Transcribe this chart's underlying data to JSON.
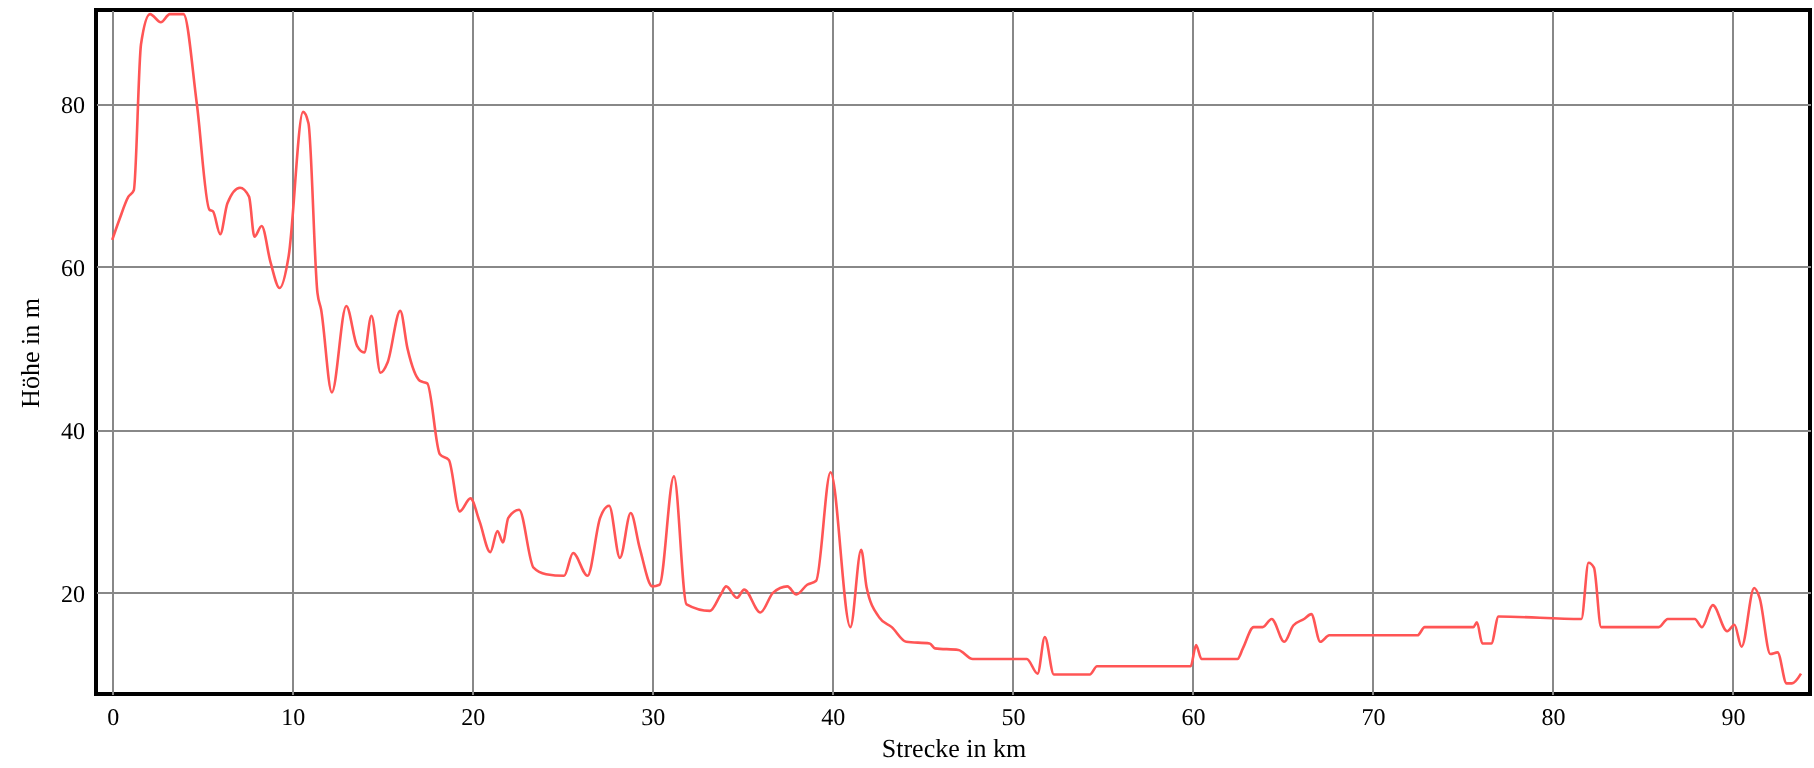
{
  "chart_data": {
    "type": "line",
    "xlabel": "Strecke in km",
    "ylabel": "Höhe in m",
    "x": [
      0,
      0.4,
      0.9,
      1.2,
      1.6,
      2.1,
      2.7,
      3.2,
      3.96,
      4.7,
      5.4,
      5.6,
      6.0,
      6.4,
      7.1,
      7.6,
      7.9,
      8.3,
      8.8,
      9.3,
      9.8,
      10.6,
      10.9,
      11.4,
      11.6,
      12.2,
      13.0,
      13.6,
      14.0,
      14.4,
      14.9,
      15.3,
      16.0,
      16.4,
      17.1,
      17.5,
      18.2,
      18.7,
      19.3,
      19.9,
      20.4,
      21.0,
      21.4,
      21.7,
      22.0,
      22.6,
      23.4,
      24.1,
      25.1,
      25.6,
      26.4,
      27.1,
      27.6,
      28.2,
      28.8,
      29.3,
      30.0,
      30.4,
      31.2,
      31.9,
      33.2,
      33.8,
      34.1,
      34.7,
      35.1,
      36.0,
      36.7,
      37.5,
      38.0,
      38.6,
      39.1,
      39.9,
      41.0,
      41.6,
      41.9,
      42.6,
      43.3,
      44.1,
      45.4,
      45.7,
      47.0,
      47.8,
      50.8,
      51.4,
      51.8,
      52.3,
      54.3,
      54.7,
      59.9,
      60.2,
      60.5,
      62.5,
      62.8,
      63.4,
      63.9,
      64.4,
      65.1,
      65.6,
      66.2,
      66.6,
      67.1,
      67.6,
      72.5,
      72.9,
      75.6,
      75.8,
      76.1,
      76.6,
      77.0,
      81.6,
      82.0,
      82.3,
      82.7,
      85.9,
      86.4,
      87.9,
      88.3,
      88.9,
      89.7,
      90.1,
      90.5,
      91.2,
      91.5,
      92.1,
      92.5,
      93.0,
      93.3,
      93.8
    ],
    "series": [
      {
        "color": "#ff5555",
        "values": [
          63.3,
          65.8,
          68.6,
          69.4,
          87.3,
          91,
          90,
          91,
          91,
          80,
          67,
          66.8,
          64,
          67.8,
          69.7,
          68.6,
          63.7,
          65,
          60.5,
          57.4,
          61.3,
          79,
          77.6,
          56.8,
          54.8,
          44.6,
          55.2,
          50.3,
          49.5,
          54,
          47,
          48.3,
          54.6,
          50,
          46,
          45.7,
          37,
          36.3,
          30,
          31.6,
          28.8,
          25,
          27.6,
          26.2,
          29.2,
          30.2,
          23.1,
          22.3,
          22.1,
          24.9,
          22.1,
          29.2,
          30.7,
          24.3,
          29.8,
          25.5,
          20.8,
          21,
          34.3,
          18.6,
          17.8,
          19.8,
          20.8,
          19.4,
          20.4,
          17.6,
          20,
          20.8,
          19.8,
          21,
          21.5,
          34.8,
          15.8,
          25.3,
          20.7,
          17,
          15.8,
          14,
          13.8,
          13.2,
          13,
          11.9,
          11.9,
          10.1,
          14.6,
          10,
          10,
          11,
          11,
          13.6,
          11.9,
          11.9,
          13.2,
          15.8,
          15.8,
          16.8,
          14,
          16,
          16.8,
          17.4,
          14,
          14.8,
          14.8,
          15.8,
          15.8,
          16.4,
          13.8,
          13.8,
          17.1,
          16.8,
          23.7,
          23.1,
          15.8,
          15.8,
          16.8,
          16.8,
          15.8,
          18.5,
          15.3,
          16.1,
          13.4,
          20.6,
          19.4,
          12.5,
          12.7,
          8.9,
          8.9,
          10.1
        ]
      }
    ],
    "xlim": [
      -0.9,
      94.3
    ],
    "ylim": [
      7.6,
      91.5
    ],
    "xticks": [
      0,
      10,
      20,
      30,
      40,
      50,
      60,
      70,
      80,
      90
    ],
    "yticks": [
      20,
      40,
      60,
      80
    ],
    "grid": true,
    "marker": "none",
    "line_style": "solid"
  }
}
